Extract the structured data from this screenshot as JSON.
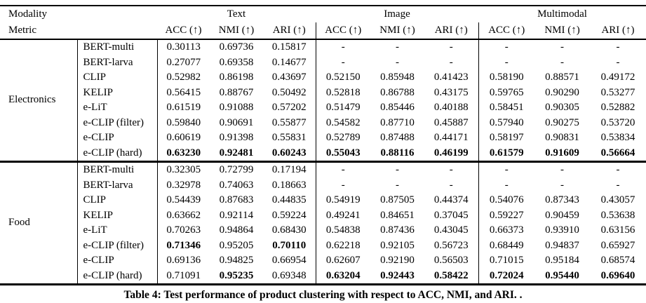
{
  "table": {
    "caption": "Table 4: Test performance of product clustering with respect to ACC, NMI, and ARI. .",
    "corner_row1": "Modality",
    "corner_row2": "Metric",
    "groups": [
      "Text",
      "Image",
      "Multimodal"
    ],
    "metrics": [
      "ACC (↑)",
      "NMI (↑)",
      "ARI (↑)"
    ],
    "sections": [
      {
        "modality": "Electronics",
        "rows": [
          {
            "model": "BERT-multi",
            "values": [
              "0.30113",
              "0.69736",
              "0.15817",
              "-",
              "-",
              "-",
              "-",
              "-",
              "-"
            ],
            "bold": []
          },
          {
            "model": "BERT-larva",
            "values": [
              "0.27077",
              "0.69358",
              "0.14677",
              "-",
              "-",
              "-",
              "-",
              "-",
              "-"
            ],
            "bold": []
          },
          {
            "model": "CLIP",
            "values": [
              "0.52982",
              "0.86198",
              "0.43697",
              "0.52150",
              "0.85948",
              "0.41423",
              "0.58190",
              "0.88571",
              "0.49172"
            ],
            "bold": []
          },
          {
            "model": "KELIP",
            "values": [
              "0.56415",
              "0.88767",
              "0.50492",
              "0.52818",
              "0.86788",
              "0.43175",
              "0.59765",
              "0.90290",
              "0.53277"
            ],
            "bold": []
          },
          {
            "model": "e-LiT",
            "values": [
              "0.61519",
              "0.91088",
              "0.57202",
              "0.51479",
              "0.85446",
              "0.40188",
              "0.58451",
              "0.90305",
              "0.52882"
            ],
            "bold": []
          },
          {
            "model": "e-CLIP (filter)",
            "values": [
              "0.59840",
              "0.90691",
              "0.55877",
              "0.54582",
              "0.87710",
              "0.45887",
              "0.57940",
              "0.90275",
              "0.53720"
            ],
            "bold": []
          },
          {
            "model": "e-CLIP",
            "values": [
              "0.60619",
              "0.91398",
              "0.55831",
              "0.52789",
              "0.87488",
              "0.44171",
              "0.58197",
              "0.90831",
              "0.53834"
            ],
            "bold": []
          },
          {
            "model": "e-CLIP (hard)",
            "values": [
              "0.63230",
              "0.92481",
              "0.60243",
              "0.55043",
              "0.88116",
              "0.46199",
              "0.61579",
              "0.91609",
              "0.56664"
            ],
            "bold": [
              0,
              1,
              2,
              3,
              4,
              5,
              6,
              7,
              8
            ]
          }
        ]
      },
      {
        "modality": "Food",
        "rows": [
          {
            "model": "BERT-multi",
            "values": [
              "0.32305",
              "0.72799",
              "0.17194",
              "-",
              "-",
              "-",
              "-",
              "-",
              "-"
            ],
            "bold": []
          },
          {
            "model": "BERT-larva",
            "values": [
              "0.32978",
              "0.74063",
              "0.18663",
              "-",
              "-",
              "-",
              "-",
              "-",
              "-"
            ],
            "bold": []
          },
          {
            "model": "CLIP",
            "values": [
              "0.54439",
              "0.87683",
              "0.44835",
              "0.54919",
              "0.87505",
              "0.44374",
              "0.54076",
              "0.87343",
              "0.43057"
            ],
            "bold": []
          },
          {
            "model": "KELIP",
            "values": [
              "0.63662",
              "0.92114",
              "0.59224",
              "0.49241",
              "0.84651",
              "0.37045",
              "0.59227",
              "0.90459",
              "0.53638"
            ],
            "bold": []
          },
          {
            "model": "e-LiT",
            "values": [
              "0.70263",
              "0.94864",
              "0.68430",
              "0.54838",
              "0.87436",
              "0.43045",
              "0.66373",
              "0.93910",
              "0.63156"
            ],
            "bold": []
          },
          {
            "model": "e-CLIP (filter)",
            "values": [
              "0.71346",
              "0.95205",
              "0.70110",
              "0.62218",
              "0.92105",
              "0.56723",
              "0.68449",
              "0.94837",
              "0.65927"
            ],
            "bold": [
              0,
              2
            ]
          },
          {
            "model": "e-CLIP",
            "values": [
              "0.69136",
              "0.94825",
              "0.66954",
              "0.62607",
              "0.92190",
              "0.56503",
              "0.71015",
              "0.95184",
              "0.68574"
            ],
            "bold": []
          },
          {
            "model": "e-CLIP (hard)",
            "values": [
              "0.71091",
              "0.95235",
              "0.69348",
              "0.63204",
              "0.92443",
              "0.58422",
              "0.72024",
              "0.95440",
              "0.69640"
            ],
            "bold": [
              1,
              3,
              4,
              5,
              6,
              7,
              8
            ]
          }
        ]
      }
    ]
  }
}
